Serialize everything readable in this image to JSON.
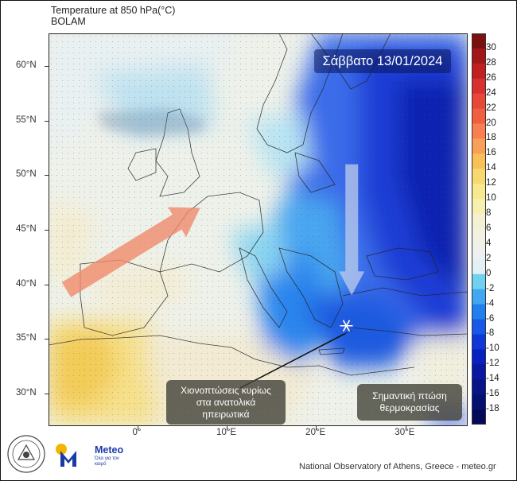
{
  "title": {
    "line1": "Temperature at 850 hPa(°C)",
    "line2": "BOLAM"
  },
  "date_label": "Σάββατο 13/01/2024",
  "annotations": {
    "snow_note": [
      "Χιονοπτώσεις κυρίως",
      "στα ανατολικά",
      "ηπειρωτικά"
    ],
    "temp_drop_note": [
      "Σημαντική πτώση",
      "θερμοκρασίας"
    ]
  },
  "map": {
    "extent": {
      "lon_min": -10,
      "lon_max": 37,
      "lat_min": 27,
      "lat_max": 63
    },
    "lat_ticks": [
      {
        "value": 60,
        "label": "60°N"
      },
      {
        "value": 55,
        "label": "55°N"
      },
      {
        "value": 50,
        "label": "50°N"
      },
      {
        "value": 45,
        "label": "45°N"
      },
      {
        "value": 40,
        "label": "40°N"
      },
      {
        "value": 35,
        "label": "35°N"
      },
      {
        "value": 30,
        "label": "30°N"
      }
    ],
    "lon_ticks": [
      {
        "value": 0,
        "label": "0°"
      },
      {
        "value": 10,
        "label": "10°E"
      },
      {
        "value": 20,
        "label": "20°E"
      },
      {
        "value": 30,
        "label": "30°E"
      }
    ],
    "warm_arrow": {
      "from": [
        -8,
        39.5
      ],
      "to": [
        7,
        47
      ],
      "color": "#f08868"
    },
    "cold_arrow": {
      "from": [
        24,
        51
      ],
      "to": [
        24,
        39
      ],
      "color": "#b8c8ec"
    },
    "snow_marker": {
      "lon": 23.4,
      "lat": 36.2,
      "icon": "snowflake-icon"
    },
    "pointer_line": {
      "from": [
        24.0,
        35.8
      ],
      "to": [
        11.5,
        30.5
      ]
    }
  },
  "colorbar": {
    "labels": [
      "30",
      "28",
      "26",
      "24",
      "22",
      "20",
      "18",
      "16",
      "14",
      "12",
      "10",
      "8",
      "6",
      "4",
      "2",
      "0",
      "-2",
      "-4",
      "-6",
      "-8",
      "-10",
      "-12",
      "-14",
      "-16",
      "-18"
    ],
    "colors": [
      "#7a1010",
      "#a01818",
      "#c02020",
      "#d83030",
      "#e84838",
      "#f06040",
      "#f88050",
      "#f8a058",
      "#f8c058",
      "#f8d870",
      "#f8e890",
      "#f6f0b0",
      "#f4f0d4",
      "#f2f0e2",
      "#eef0ee",
      "#e2f0f6",
      "#70d0f0",
      "#40a8f0",
      "#2080f0",
      "#1858e8",
      "#1038d8",
      "#0820c0",
      "#0818a0",
      "#081488",
      "#061070",
      "#040a58"
    ]
  },
  "footer": "National Observatory of Athens, Greece - meteo.gr",
  "logos": {
    "meteo_name": "Meteo",
    "meteo_tagline": "Όλα για τον καιρό",
    "brand_color": "#1a3aa8"
  }
}
